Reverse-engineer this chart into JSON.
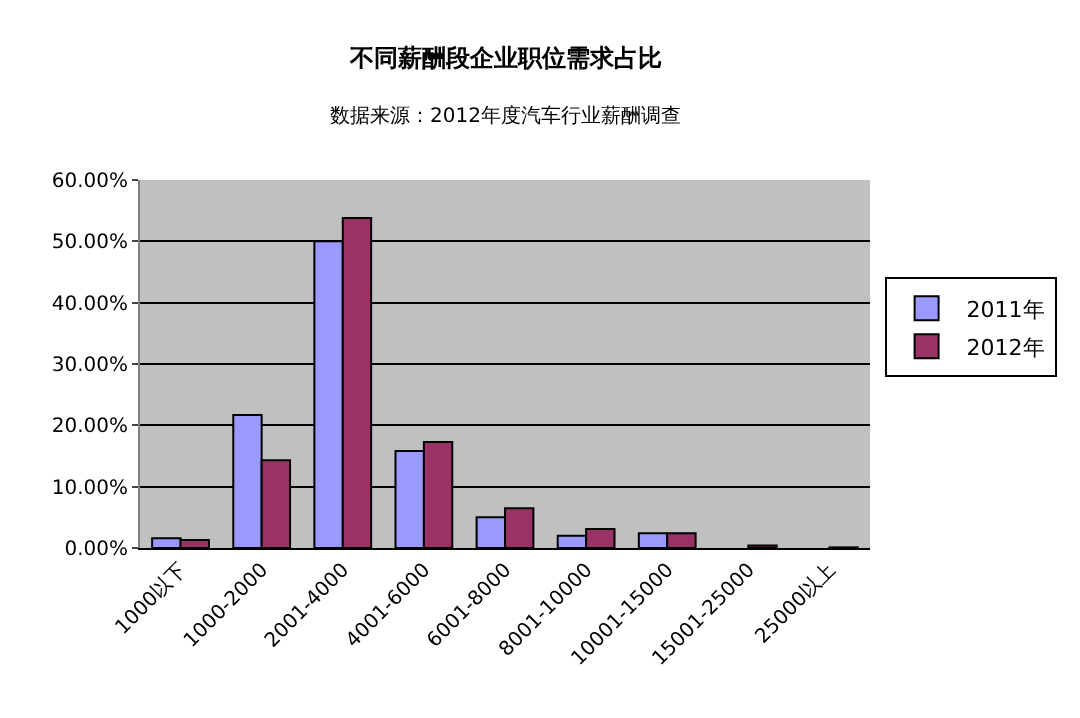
{
  "chart_data": {
    "type": "bar",
    "title": "不同薪酬段企业职位需求占比",
    "subtitle": "数据来源：2012年度汽车行业薪酬调查",
    "categories": [
      "1000以下",
      "1000-2000",
      "2001-4000",
      "4001-6000",
      "6001-8000",
      "8001-10000",
      "10001-15000",
      "15001-25000",
      "25000以上"
    ],
    "series": [
      {
        "name": "2011年",
        "color": "#9999ff",
        "values": [
          1.6,
          21.7,
          50,
          15.8,
          5.0,
          2.0,
          2.4,
          null,
          null
        ]
      },
      {
        "name": "2012年",
        "color": "#993366",
        "values": [
          1.3,
          14.3,
          53.8,
          17.3,
          6.5,
          3.1,
          2.4,
          0.4,
          0.1
        ]
      }
    ],
    "ylim": [
      0,
      60
    ],
    "yticks": [
      {
        "value": 0,
        "label": "0.00%"
      },
      {
        "value": 10,
        "label": "10.00%"
      },
      {
        "value": 20,
        "label": "20.00%"
      },
      {
        "value": 30,
        "label": "30.00%"
      },
      {
        "value": 40,
        "label": "40.00%"
      },
      {
        "value": 50,
        "label": "50.00%"
      },
      {
        "value": 60,
        "label": "60.00%"
      }
    ],
    "grid": "y",
    "legend": "right"
  }
}
